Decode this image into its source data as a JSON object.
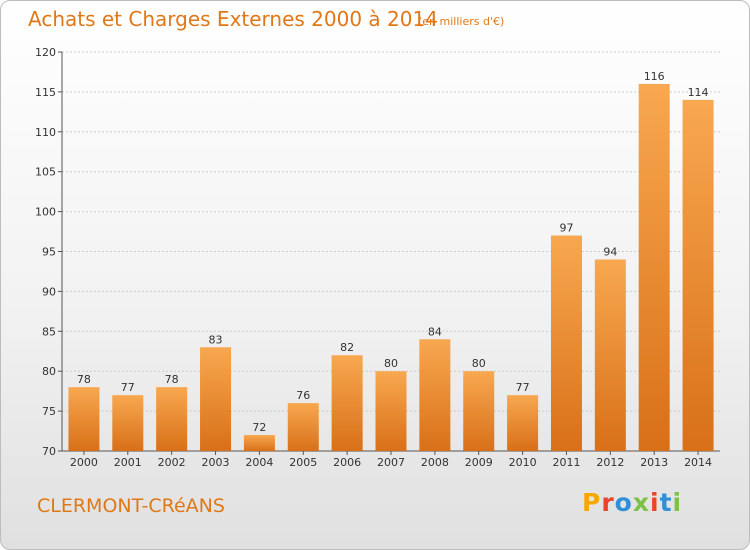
{
  "header": {
    "title": "Achats et Charges Externes 2000 à 2014",
    "subtitle": "(en milliers d'€)"
  },
  "footer": {
    "place": "CLERMONT-CRéANS",
    "logo": "Proxiti",
    "logo_colors": [
      "#f7a800",
      "#e8452c",
      "#2f8fd8",
      "#7dc242",
      "#e8452c",
      "#2f8fd8",
      "#7dc242"
    ]
  },
  "colors": {
    "accent": "#e07818",
    "bar_top": "#f8a850",
    "bar_bottom": "#d87018",
    "grid": "#cccccc"
  },
  "chart_data": {
    "type": "bar",
    "title": "Achats et Charges Externes 2000 à 2014",
    "subtitle": "(en milliers d'€)",
    "xlabel": "",
    "ylabel": "",
    "categories": [
      "2000",
      "2001",
      "2002",
      "2003",
      "2004",
      "2005",
      "2006",
      "2007",
      "2008",
      "2009",
      "2010",
      "2011",
      "2012",
      "2013",
      "2014"
    ],
    "values": [
      78,
      77,
      78,
      83,
      72,
      76,
      82,
      80,
      84,
      80,
      77,
      97,
      94,
      116,
      114
    ],
    "ylim": [
      70,
      120
    ],
    "yticks": [
      70,
      75,
      80,
      85,
      90,
      95,
      100,
      105,
      110,
      115,
      120
    ],
    "grid": true,
    "legend": "none"
  }
}
